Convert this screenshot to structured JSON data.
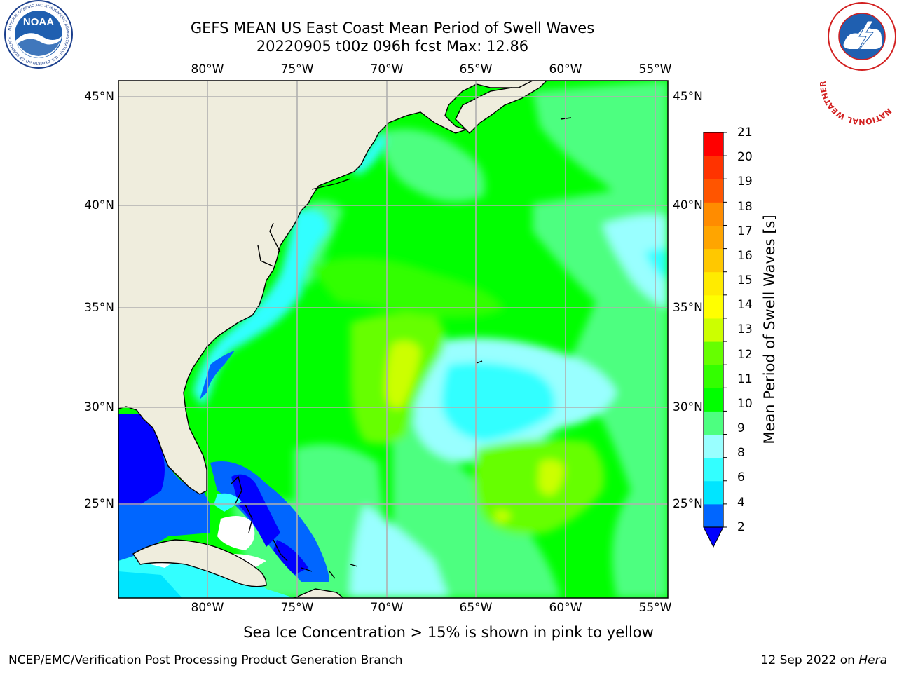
{
  "header": {
    "title_line1": "GEFS MEAN US East Coast Mean Period of Swell Waves",
    "title_line2": "20220905 t00z 096h fcst   Max: 12.86"
  },
  "map": {
    "lon_labels": [
      "80°W",
      "75°W",
      "70°W",
      "65°W",
      "60°W",
      "55°W"
    ],
    "lat_labels": [
      "45°N",
      "40°N",
      "35°N",
      "30°N",
      "25°N"
    ],
    "land_color": "#EFEDDD",
    "grid_color": "#B0B0B0"
  },
  "colorbar": {
    "label": "Mean Period of Swell Waves [s]",
    "ticks": [
      "21",
      "20",
      "19",
      "18",
      "17",
      "16",
      "15",
      "14",
      "13",
      "12",
      "11",
      "10",
      "9",
      "8",
      "6",
      "4",
      "2"
    ],
    "colors_low_to_high": [
      "#0066FF",
      "#00E5FF",
      "#33FFFF",
      "#99FFFF",
      "#4DFF80",
      "#00FF00",
      "#33FF00",
      "#66FF00",
      "#CCFF00",
      "#FFFF00",
      "#FFEB00",
      "#FFC800",
      "#FFA500",
      "#FF8C00",
      "#FF5500",
      "#FF3300",
      "#FF0000"
    ],
    "extend_color": "#0000FF"
  },
  "notes": {
    "sea_ice": "Sea Ice Concentration > 15% is shown in pink to yellow"
  },
  "footer": {
    "left": "NCEP/EMC/Verification Post Processing Product Generation Branch",
    "date": "12 Sep 2022 on ",
    "machine": "Hera"
  },
  "logos": {
    "noaa_text": "NOAA",
    "noaa_ring": "NATIONAL OCEANIC AND ATMOSPHERIC ADMINISTRATION · U.S. DEPARTMENT OF COMMERCE",
    "nws_ring": "NATIONAL WEATHER SERVICE"
  }
}
